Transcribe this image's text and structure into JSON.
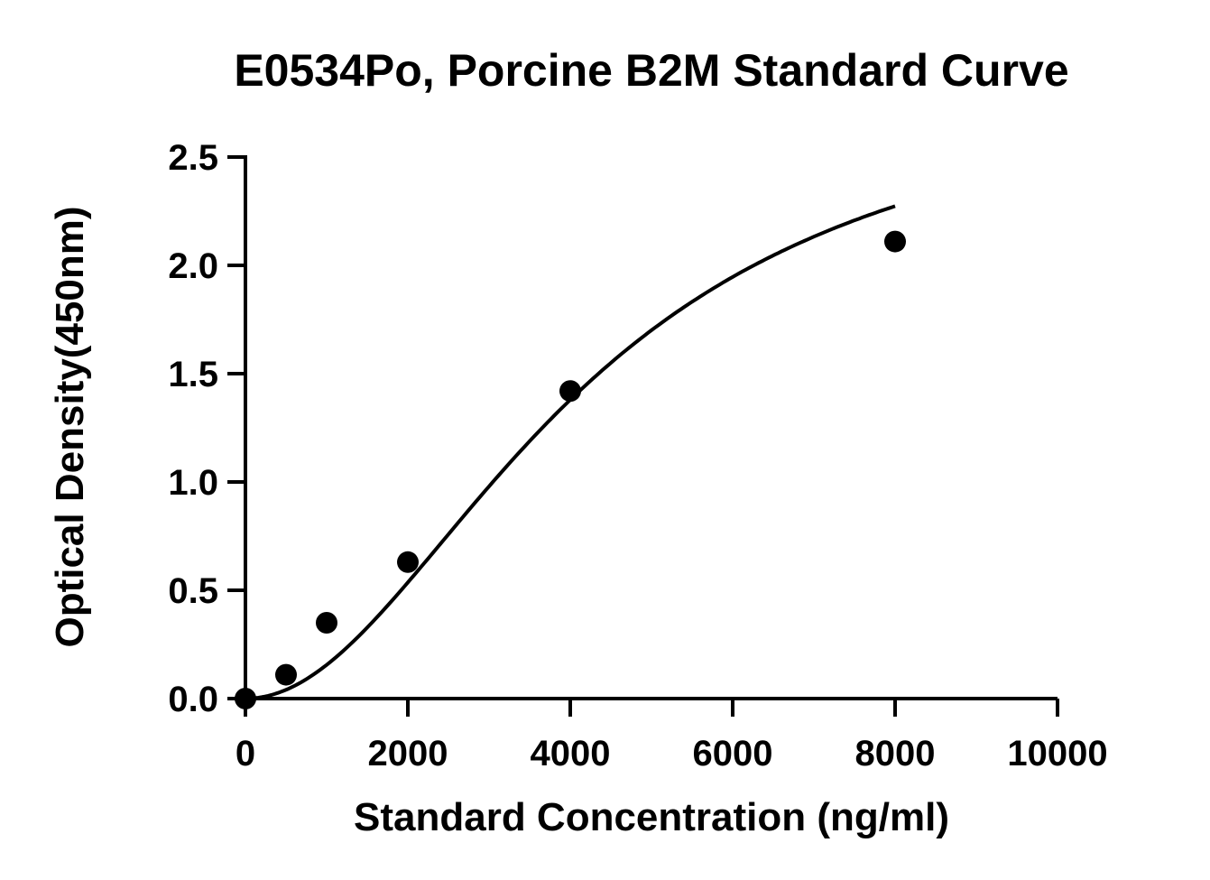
{
  "chart_data": {
    "type": "scatter",
    "title": "E0534Po, Porcine B2M Standard Curve",
    "xlabel": "Standard Concentration (ng/ml)",
    "ylabel": "Optical Density(450nm)",
    "xlim": [
      0,
      10000
    ],
    "ylim": [
      0,
      2.5
    ],
    "x_ticks": [
      0,
      2000,
      4000,
      6000,
      8000,
      10000
    ],
    "x_tick_labels": [
      "0",
      "2000",
      "4000",
      "6000",
      "8000",
      "10000"
    ],
    "y_ticks": [
      0,
      0.5,
      1.0,
      1.5,
      2.0,
      2.5
    ],
    "y_tick_labels": [
      "0.0",
      "0.5",
      "1.0",
      "1.5",
      "2.0",
      "2.5"
    ],
    "grid": false,
    "legend": "none",
    "series": [
      {
        "points": [
          {
            "x": 0,
            "y": 0.0
          },
          {
            "x": 500,
            "y": 0.11
          },
          {
            "x": 1000,
            "y": 0.35
          },
          {
            "x": 2000,
            "y": 0.63
          },
          {
            "x": 4000,
            "y": 1.42
          },
          {
            "x": 8000,
            "y": 2.11
          }
        ],
        "fit": "four-parameter logistic",
        "fit_range": [
          0,
          8000
        ],
        "color": "#000000"
      }
    ]
  }
}
